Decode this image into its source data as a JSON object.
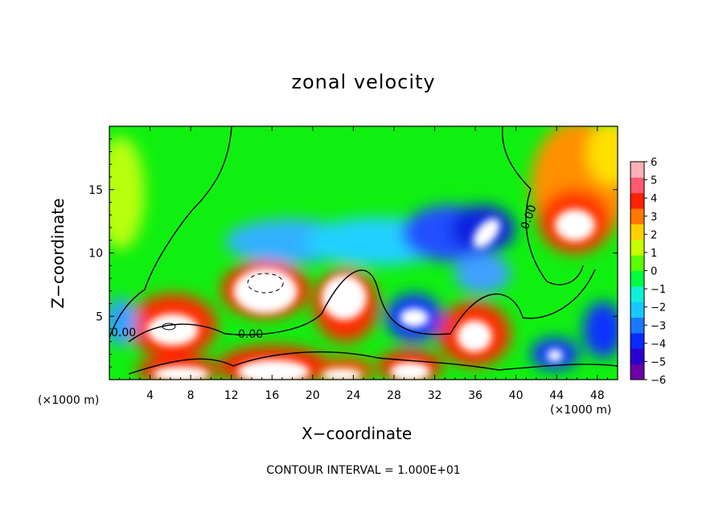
{
  "chart_data": {
    "type": "heatmap",
    "title": "zonal velocity",
    "xlabel": "X−coordinate",
    "ylabel": "Z−coordinate",
    "x_unit_left": "(×1000 m)",
    "x_unit_right": "(×1000 m)",
    "footnote": "CONTOUR INTERVAL = 1.000E+01",
    "xlim": [
      0,
      50
    ],
    "ylim": [
      0,
      20
    ],
    "x_ticks": [
      4,
      8,
      12,
      16,
      20,
      24,
      28,
      32,
      36,
      40,
      44,
      48
    ],
    "y_ticks": [
      5,
      10,
      15
    ],
    "colorbar": {
      "min": -6,
      "max": 6,
      "ticks": [
        "6",
        "5",
        "4",
        "3",
        "2",
        "1",
        "0",
        "−1",
        "−2",
        "−3",
        "−4",
        "−5",
        "−6"
      ],
      "colors": [
        "#6a00a8",
        "#2a00d0",
        "#0a28ff",
        "#1a78ff",
        "#16c8ff",
        "#10f0d8",
        "#00ff40",
        "#5aff00",
        "#c8ff00",
        "#ffd000",
        "#ff7800",
        "#ff2000",
        "#ff5a70",
        "#ffb0b8"
      ]
    },
    "contour_label": "0.00",
    "features": [
      {
        "kind": "max",
        "x": 6.5,
        "z": 4.5,
        "value": 6
      },
      {
        "kind": "max",
        "x": 16,
        "z": 7.5,
        "value": 6
      },
      {
        "kind": "max",
        "x": 24,
        "z": 7.5,
        "value": 6
      },
      {
        "kind": "min",
        "x": 30,
        "z": 5,
        "value": -6
      },
      {
        "kind": "max",
        "x": 36,
        "z": 4,
        "value": 6
      },
      {
        "kind": "min",
        "x": 38,
        "z": 12,
        "value": -6
      },
      {
        "kind": "max",
        "x": 46,
        "z": 12,
        "value": 6
      },
      {
        "kind": "max",
        "x": 6,
        "z": 0.5,
        "value": 6
      },
      {
        "kind": "max",
        "x": 17,
        "z": 1,
        "value": 6
      },
      {
        "kind": "max",
        "x": 23,
        "z": 0.5,
        "value": 6
      },
      {
        "kind": "max",
        "x": 30,
        "z": 1,
        "value": 6
      }
    ]
  }
}
